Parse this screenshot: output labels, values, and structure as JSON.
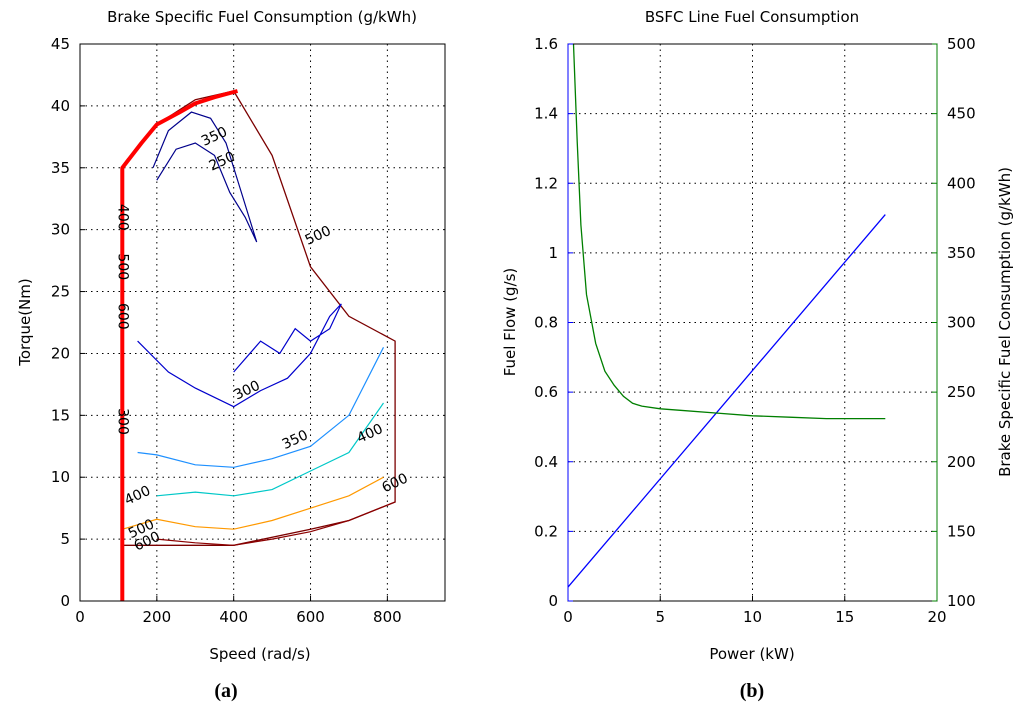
{
  "chart_data": [
    {
      "type": "contour",
      "panel": "(a)",
      "title": "Brake Specific Fuel Consumption (g/kWh)",
      "xlabel": "Speed (rad/s)",
      "ylabel": "Torque(Nm)",
      "xlim": [
        0,
        950
      ],
      "ylim": [
        0,
        45
      ],
      "xticks": [
        0,
        200,
        400,
        600,
        800
      ],
      "yticks": [
        0,
        5,
        10,
        15,
        20,
        25,
        30,
        35,
        40,
        45
      ],
      "grid": true,
      "colors": {
        "boundary": "#7b0000",
        "maxTorque": "#ff0000",
        "c250": "#00008b",
        "c300": "#0000cc",
        "c350": "#1e90ff",
        "c400": "#00c8c8",
        "c500": "#ff9900",
        "c600": "#8b0000"
      },
      "boundary": [
        [
          110,
          0
        ],
        [
          110,
          35
        ],
        [
          200,
          38.5
        ],
        [
          300,
          40.5
        ],
        [
          400,
          41.2
        ],
        [
          500,
          36
        ],
        [
          600,
          27
        ],
        [
          700,
          23
        ],
        [
          820,
          21
        ],
        [
          820,
          8
        ],
        [
          700,
          6.5
        ],
        [
          600,
          5.8
        ],
        [
          400,
          4.5
        ],
        [
          200,
          4.5
        ],
        [
          110,
          4.5
        ]
      ],
      "max_torque_line": [
        [
          110,
          0
        ],
        [
          110,
          35
        ],
        [
          160,
          37
        ],
        [
          200,
          38.5
        ],
        [
          260,
          39.5
        ],
        [
          300,
          40.2
        ],
        [
          350,
          40.7
        ],
        [
          410,
          41.2
        ]
      ],
      "contours": [
        {
          "level": 250,
          "points": [
            [
              190,
              35
            ],
            [
              230,
              38
            ],
            [
              290,
              39.5
            ],
            [
              340,
              39
            ],
            [
              380,
              37
            ],
            [
              420,
              33
            ],
            [
              460,
              29
            ],
            [
              430,
              31
            ],
            [
              390,
              33
            ],
            [
              350,
              36
            ],
            [
              300,
              37
            ],
            [
              250,
              36.5
            ],
            [
              200,
              34
            ]
          ]
        },
        {
          "level": 300,
          "points": [
            [
              150,
              21
            ],
            [
              230,
              18.5
            ],
            [
              300,
              17.2
            ],
            [
              400,
              15.7
            ],
            [
              470,
              17
            ],
            [
              540,
              18
            ],
            [
              600,
              20
            ],
            [
              650,
              23
            ],
            [
              680,
              24
            ],
            [
              650,
              22
            ],
            [
              600,
              21
            ],
            [
              560,
              22
            ],
            [
              520,
              20
            ],
            [
              470,
              21
            ],
            [
              400,
              18.5
            ]
          ]
        },
        {
          "level": 350,
          "points": [
            [
              150,
              12
            ],
            [
              200,
              11.8
            ],
            [
              300,
              11
            ],
            [
              400,
              10.8
            ],
            [
              500,
              11.5
            ],
            [
              600,
              12.5
            ],
            [
              700,
              15
            ],
            [
              790,
              20.5
            ]
          ]
        },
        {
          "level": 400,
          "points": [
            [
              200,
              8.5
            ],
            [
              300,
              8.8
            ],
            [
              400,
              8.5
            ],
            [
              500,
              9
            ],
            [
              600,
              10.5
            ],
            [
              700,
              12
            ],
            [
              790,
              16
            ]
          ]
        },
        {
          "level": 500,
          "points": [
            [
              110,
              5.8
            ],
            [
              200,
              6.6
            ],
            [
              300,
              6
            ],
            [
              400,
              5.8
            ],
            [
              500,
              6.5
            ],
            [
              600,
              7.5
            ],
            [
              700,
              8.5
            ],
            [
              790,
              10
            ]
          ]
        },
        {
          "level": 600,
          "points": [
            [
              200,
              5
            ],
            [
              300,
              4.7
            ],
            [
              400,
              4.5
            ],
            [
              500,
              5
            ],
            [
              600,
              5.6
            ],
            [
              700,
              6.5
            ],
            [
              820,
              8
            ]
          ]
        }
      ],
      "annotations": [
        {
          "text": "400",
          "x": 110,
          "y": 31
        },
        {
          "text": "500",
          "x": 110,
          "y": 27
        },
        {
          "text": "600",
          "x": 110,
          "y": 23
        },
        {
          "text": "300",
          "x": 110,
          "y": 14.5
        },
        {
          "text": "350",
          "x": 350,
          "y": 37.5
        },
        {
          "text": "250",
          "x": 370,
          "y": 35.5
        },
        {
          "text": "300",
          "x": 435,
          "y": 17
        },
        {
          "text": "350",
          "x": 560,
          "y": 13
        },
        {
          "text": "400",
          "x": 755,
          "y": 13.5
        },
        {
          "text": "400",
          "x": 150,
          "y": 8.5
        },
        {
          "text": "500",
          "x": 160,
          "y": 5.8
        },
        {
          "text": "600",
          "x": 175,
          "y": 4.8
        },
        {
          "text": "600",
          "x": 820,
          "y": 9.5
        },
        {
          "text": "500",
          "x": 620,
          "y": 29.5
        }
      ]
    },
    {
      "type": "line",
      "panel": "(b)",
      "title": "BSFC Line Fuel Consumption",
      "xlabel": "Power (kW)",
      "ylabel": "Fuel Flow (g/s)",
      "ylabel_right": "Brake Specific Fuel Consumption (g/kWh)",
      "xlim": [
        0,
        20
      ],
      "ylim": [
        0,
        1.6
      ],
      "ylim_right": [
        100,
        500
      ],
      "xticks": [
        0,
        5,
        10,
        15,
        20
      ],
      "yticks": [
        0,
        0.2,
        0.4,
        0.6,
        0.8,
        1,
        1.2,
        1.4,
        1.6
      ],
      "yticks_right": [
        100,
        150,
        200,
        250,
        300,
        350,
        400,
        450,
        500
      ],
      "grid": true,
      "colors": {
        "left": "#0000ff",
        "right": "#007f00"
      },
      "series": [
        {
          "name": "Fuel Flow (g/s)",
          "axis": "left",
          "color": "#0000ff",
          "x": [
            0,
            17.2
          ],
          "y": [
            0.04,
            1.11
          ]
        },
        {
          "name": "Brake Specific Fuel Consumption (g/kWh)",
          "axis": "right",
          "color": "#007f00",
          "x": [
            0.3,
            0.5,
            0.7,
            1,
            1.5,
            2,
            2.5,
            3,
            3.5,
            4,
            5,
            6,
            8,
            10,
            12,
            14,
            16,
            17.2
          ],
          "y": [
            500,
            430,
            370,
            320,
            285,
            265,
            255,
            247,
            242,
            240,
            238,
            237,
            235,
            233,
            232,
            231,
            231,
            231
          ]
        }
      ]
    }
  ],
  "captions": {
    "a": "(a)",
    "b": "(b)"
  }
}
